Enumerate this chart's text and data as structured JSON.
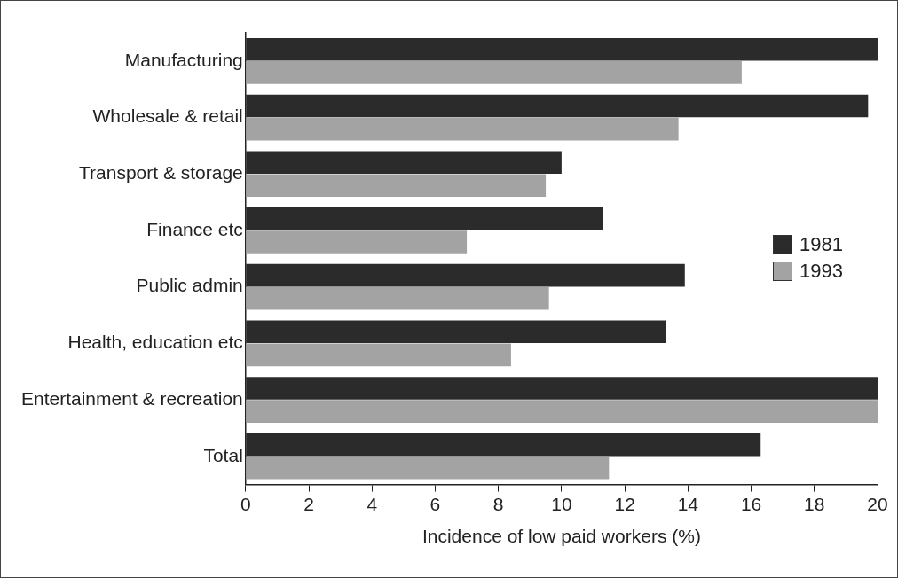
{
  "chart_data": {
    "type": "bar",
    "orientation": "horizontal",
    "xlabel": "Incidence of low paid workers (%)",
    "categories": [
      "Manufacturing",
      "Wholesale & retail",
      "Transport & storage",
      "Finance etc",
      "Public admin",
      "Health, education etc",
      "Entertainment & recreation",
      "Total"
    ],
    "series": [
      {
        "name": "1981",
        "color": "#2b2b2b",
        "values": [
          20,
          19.7,
          10,
          11.3,
          13.9,
          13.3,
          20,
          16.3
        ]
      },
      {
        "name": "1993",
        "color": "#a3a3a3",
        "values": [
          15.7,
          13.7,
          9.5,
          7,
          9.6,
          8.4,
          20,
          11.5
        ]
      }
    ],
    "xlim": [
      0,
      20
    ],
    "xticks": [
      0,
      2,
      4,
      6,
      8,
      10,
      12,
      14,
      16,
      18,
      20
    ],
    "grid": false,
    "legend": "right"
  }
}
